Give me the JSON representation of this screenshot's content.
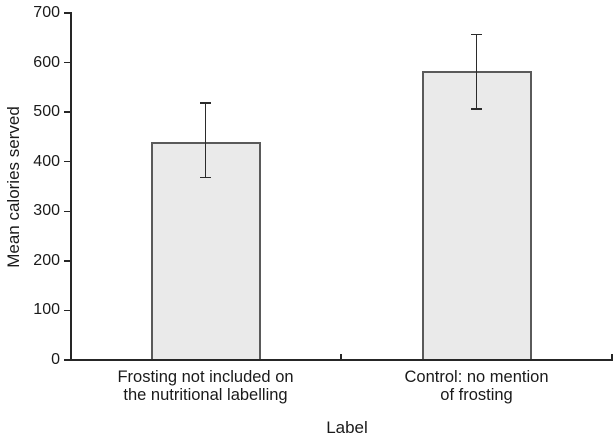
{
  "chart_data": {
    "type": "bar",
    "title": "",
    "xlabel": "Label",
    "ylabel": "Mean calories served",
    "categories": [
      [
        "Frosting not included on",
        "the nutritional labelling"
      ],
      [
        "Control: no mention",
        "of frosting"
      ]
    ],
    "values": [
      440,
      583
    ],
    "error_lower": [
      368,
      506
    ],
    "error_upper": [
      518,
      657
    ],
    "ylim": [
      0,
      700
    ],
    "yticks": [
      0,
      100,
      200,
      300,
      400,
      500,
      600,
      700
    ],
    "grid": false,
    "legend": "none",
    "colors": {
      "bar_fill": "#eaeaea",
      "bar_border": "#5a5a5a",
      "axis": "#262626",
      "error_bar": "#2b2b2b",
      "text": "#1a1a1a",
      "background": "#ffffff"
    }
  }
}
